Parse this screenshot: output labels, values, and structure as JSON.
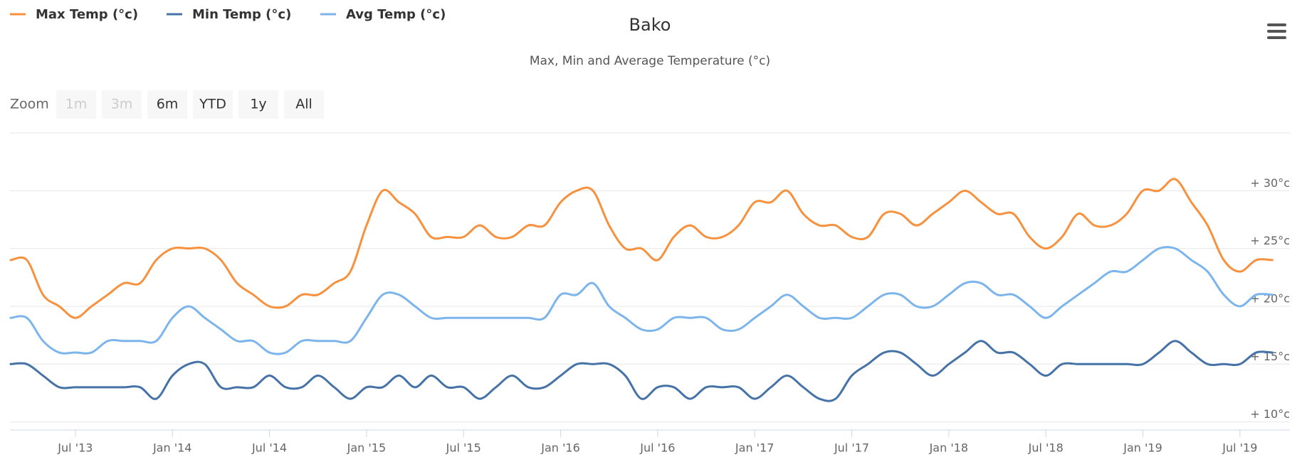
{
  "chart_data": {
    "type": "line",
    "title": "Bako",
    "subtitle": "Max, Min and Average Temperature (°c)",
    "range_selector": {
      "label": "Zoom",
      "buttons": [
        {
          "label": "1m",
          "enabled": false
        },
        {
          "label": "3m",
          "enabled": false
        },
        {
          "label": "6m",
          "enabled": true
        },
        {
          "label": "YTD",
          "enabled": true
        },
        {
          "label": "1y",
          "enabled": true
        },
        {
          "label": "All",
          "enabled": true
        }
      ]
    },
    "x": [
      "2013-03",
      "2013-04",
      "2013-05",
      "2013-06",
      "2013-07",
      "2013-08",
      "2013-09",
      "2013-10",
      "2013-11",
      "2013-12",
      "2014-01",
      "2014-02",
      "2014-03",
      "2014-04",
      "2014-05",
      "2014-06",
      "2014-07",
      "2014-08",
      "2014-09",
      "2014-10",
      "2014-11",
      "2014-12",
      "2015-01",
      "2015-02",
      "2015-03",
      "2015-04",
      "2015-05",
      "2015-06",
      "2015-07",
      "2015-08",
      "2015-09",
      "2015-10",
      "2015-11",
      "2015-12",
      "2016-01",
      "2016-02",
      "2016-03",
      "2016-04",
      "2016-05",
      "2016-06",
      "2016-07",
      "2016-08",
      "2016-09",
      "2016-10",
      "2016-11",
      "2016-12",
      "2017-01",
      "2017-02",
      "2017-03",
      "2017-04",
      "2017-05",
      "2017-06",
      "2017-07",
      "2017-08",
      "2017-09",
      "2017-10",
      "2017-11",
      "2017-12",
      "2018-01",
      "2018-02",
      "2018-03",
      "2018-04",
      "2018-05",
      "2018-06",
      "2018-07",
      "2018-08",
      "2018-09",
      "2018-10",
      "2018-11",
      "2018-12",
      "2019-01",
      "2019-02",
      "2019-03",
      "2019-04",
      "2019-05",
      "2019-06",
      "2019-07",
      "2019-08",
      "2019-09"
    ],
    "series": [
      {
        "name": "Max Temp (°c)",
        "color": "#f7913d",
        "values": [
          24,
          24,
          21,
          20,
          19,
          20,
          21,
          22,
          22,
          24,
          25,
          25,
          25,
          24,
          22,
          21,
          20,
          20,
          21,
          21,
          22,
          23,
          27,
          30,
          29,
          28,
          26,
          26,
          26,
          27,
          26,
          26,
          27,
          27,
          29,
          30,
          30,
          27,
          25,
          25,
          24,
          26,
          27,
          26,
          26,
          27,
          29,
          29,
          30,
          28,
          27,
          27,
          26,
          26,
          28,
          28,
          27,
          28,
          29,
          30,
          29,
          28,
          28,
          26,
          25,
          26,
          28,
          27,
          27,
          28,
          30,
          30,
          31,
          29,
          27,
          24,
          23,
          24,
          24
        ]
      },
      {
        "name": "Min Temp (°c)",
        "color": "#4572a7",
        "values": [
          15,
          15,
          14,
          13,
          13,
          13,
          13,
          13,
          13,
          12,
          14,
          15,
          15,
          13,
          13,
          13,
          14,
          13,
          13,
          14,
          13,
          12,
          13,
          13,
          14,
          13,
          14,
          13,
          13,
          12,
          13,
          14,
          13,
          13,
          14,
          15,
          15,
          15,
          14,
          12,
          13,
          13,
          12,
          13,
          13,
          13,
          12,
          13,
          14,
          13,
          12,
          12,
          14,
          15,
          16,
          16,
          15,
          14,
          15,
          16,
          17,
          16,
          16,
          15,
          14,
          15,
          15,
          15,
          15,
          15,
          15,
          16,
          17,
          16,
          15,
          15,
          15,
          16,
          16
        ]
      },
      {
        "name": "Avg Temp (°c)",
        "color": "#7cb5ec",
        "values": [
          19,
          19,
          17,
          16,
          16,
          16,
          17,
          17,
          17,
          17,
          19,
          20,
          19,
          18,
          17,
          17,
          16,
          16,
          17,
          17,
          17,
          17,
          19,
          21,
          21,
          20,
          19,
          19,
          19,
          19,
          19,
          19,
          19,
          19,
          21,
          21,
          22,
          20,
          19,
          18,
          18,
          19,
          19,
          19,
          18,
          18,
          19,
          20,
          21,
          20,
          19,
          19,
          19,
          20,
          21,
          21,
          20,
          20,
          21,
          22,
          22,
          21,
          21,
          20,
          19,
          20,
          21,
          22,
          23,
          23,
          24,
          25,
          25,
          24,
          23,
          21,
          20,
          21,
          21
        ]
      }
    ],
    "xlim": [
      "2013-03",
      "2019-10"
    ],
    "xticks": [
      {
        "value": "2013-07",
        "label": "Jul '13"
      },
      {
        "value": "2014-01",
        "label": "Jan '14"
      },
      {
        "value": "2014-07",
        "label": "Jul '14"
      },
      {
        "value": "2015-01",
        "label": "Jan '15"
      },
      {
        "value": "2015-07",
        "label": "Jul '15"
      },
      {
        "value": "2016-01",
        "label": "Jan '16"
      },
      {
        "value": "2016-07",
        "label": "Jul '16"
      },
      {
        "value": "2017-01",
        "label": "Jan '17"
      },
      {
        "value": "2017-07",
        "label": "Jul '17"
      },
      {
        "value": "2018-01",
        "label": "Jan '18"
      },
      {
        "value": "2018-07",
        "label": "Jul '18"
      },
      {
        "value": "2019-01",
        "label": "Jan '19"
      },
      {
        "value": "2019-07",
        "label": "Jul '19"
      }
    ],
    "ylim": [
      9.3,
      35
    ],
    "yticks": [
      {
        "value": 10,
        "label": "+ 10°c"
      },
      {
        "value": 15,
        "label": "+ 15°c"
      },
      {
        "value": 20,
        "label": "+ 20°c"
      },
      {
        "value": 25,
        "label": "+ 25°c"
      },
      {
        "value": 30,
        "label": "+ 30°c"
      }
    ],
    "grid": true,
    "legend": "top-left"
  }
}
